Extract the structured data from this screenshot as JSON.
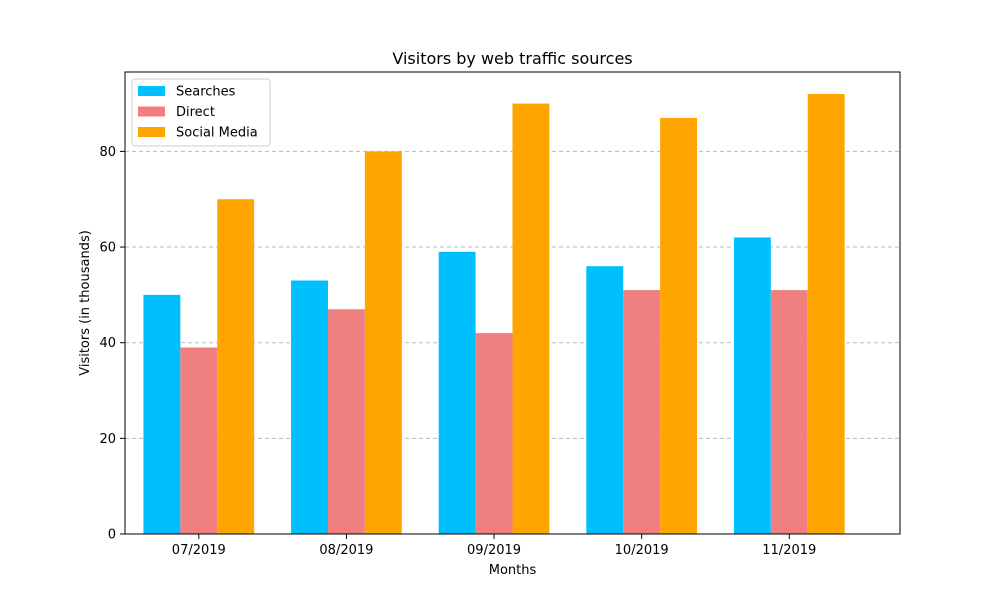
{
  "chart_data": {
    "type": "bar",
    "title": "Visitors by web traffic sources",
    "xlabel": "Months",
    "ylabel": "Visitors (in thousands)",
    "categories": [
      "07/2019",
      "08/2019",
      "09/2019",
      "10/2019",
      "11/2019"
    ],
    "series": [
      {
        "name": "Searches",
        "color": "#00BFFF",
        "values": [
          50,
          53,
          59,
          56,
          62
        ]
      },
      {
        "name": "Direct",
        "color": "#F08080",
        "values": [
          39,
          47,
          42,
          51,
          51
        ]
      },
      {
        "name": "Social Media",
        "color": "#FFA500",
        "values": [
          70,
          80,
          90,
          87,
          92
        ]
      }
    ],
    "ylim": [
      0,
      96.6
    ],
    "yticks": [
      0,
      20,
      40,
      60,
      80
    ],
    "grid": "y-dashed",
    "legend": "top-left"
  }
}
